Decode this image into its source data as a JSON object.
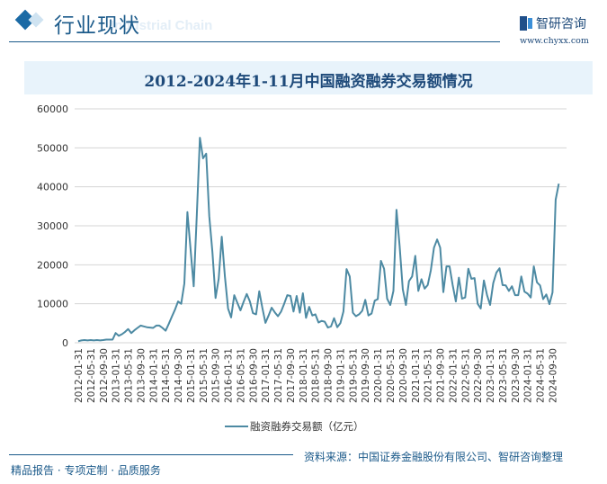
{
  "header": {
    "section_title": "行业现状",
    "section_watermark": "Industrial Chain",
    "logo_text": "智研咨询",
    "logo_url": "www.chyxx.com"
  },
  "footer": {
    "source": "资料来源：中国证券金融股份有限公司、智研咨询整理",
    "tagline": "精品报告 · 专项定制 · 品质服务"
  },
  "colors": {
    "line": "#4d8aa3",
    "title": "#1e4a7a",
    "band": "#e8f3fb",
    "accent": "#1b5a8a"
  },
  "chart_data": {
    "type": "line",
    "title": "2012-2024年1-11月中国融资融券交易额情况",
    "xlabel": "",
    "ylabel": "",
    "ylim": [
      0,
      60000
    ],
    "yticks": [
      0,
      10000,
      20000,
      30000,
      40000,
      50000,
      60000
    ],
    "grid": true,
    "legend_position": "bottom",
    "x_tick_labels": [
      "2012-01-31",
      "2012-05-31",
      "2012-09-30",
      "2013-01-31",
      "2013-05-31",
      "2013-09-30",
      "2014-01-31",
      "2014-05-31",
      "2014-09-30",
      "2015-01-31",
      "2015-05-31",
      "2015-09-30",
      "2016-01-31",
      "2016-05-31",
      "2016-09-30",
      "2017-01-31",
      "2017-05-31",
      "2017-09-30",
      "2018-01-31",
      "2018-05-31",
      "2018-09-30",
      "2019-01-31",
      "2019-05-31",
      "2019-09-30",
      "2020-01-31",
      "2020-05-31",
      "2020-09-30",
      "2021-01-31",
      "2021-05-31",
      "2021-09-30",
      "2022-01-31",
      "2022-05-31",
      "2022-09-30",
      "2023-01-31",
      "2023-05-31",
      "2023-09-30",
      "2024-01-31",
      "2024-05-31",
      "2024-09-30"
    ],
    "series": [
      {
        "name": "融资融券交易额（亿元）",
        "values": [
          400,
          600,
          700,
          600,
          700,
          600,
          700,
          600,
          700,
          800,
          800,
          800,
          2500,
          1800,
          2200,
          2800,
          3500,
          2500,
          3200,
          3800,
          4400,
          4200,
          4000,
          3900,
          3800,
          4400,
          4400,
          3800,
          3100,
          4800,
          6700,
          8500,
          10600,
          10000,
          15200,
          33500,
          24000,
          14500,
          33000,
          52600,
          47300,
          48500,
          32500,
          23300,
          11500,
          16400,
          27200,
          17000,
          8800,
          6500,
          12200,
          10200,
          8300,
          10500,
          12500,
          10600,
          7600,
          7300,
          13200,
          9000,
          5100,
          7000,
          9000,
          7800,
          6800,
          8000,
          10000,
          12200,
          12000,
          8000,
          12000,
          7700,
          12700,
          6400,
          9200,
          7000,
          7300,
          5200,
          5600,
          5400,
          3900,
          4200,
          6300,
          4000,
          5000,
          8000,
          18900,
          17000,
          7700,
          6800,
          7300,
          8200,
          11000,
          7000,
          7500,
          10800,
          11200,
          21000,
          19000,
          11300,
          9700,
          13300,
          34100,
          24800,
          13700,
          9700,
          15800,
          17000,
          22300,
          13300,
          16300,
          13900,
          14800,
          18600,
          24400,
          26500,
          24400,
          13000,
          19600,
          19600,
          14800,
          10600,
          16700,
          11300,
          11600,
          19000,
          16400,
          16600,
          10000,
          8800,
          16000,
          12200,
          9700,
          15300,
          18000,
          19100,
          14800,
          14700,
          13300,
          14500,
          12200,
          12200,
          17000,
          13100,
          12600,
          11600,
          19600,
          15500,
          14700,
          11200,
          12400,
          9900,
          12900,
          36700,
          40800
        ]
      }
    ]
  }
}
